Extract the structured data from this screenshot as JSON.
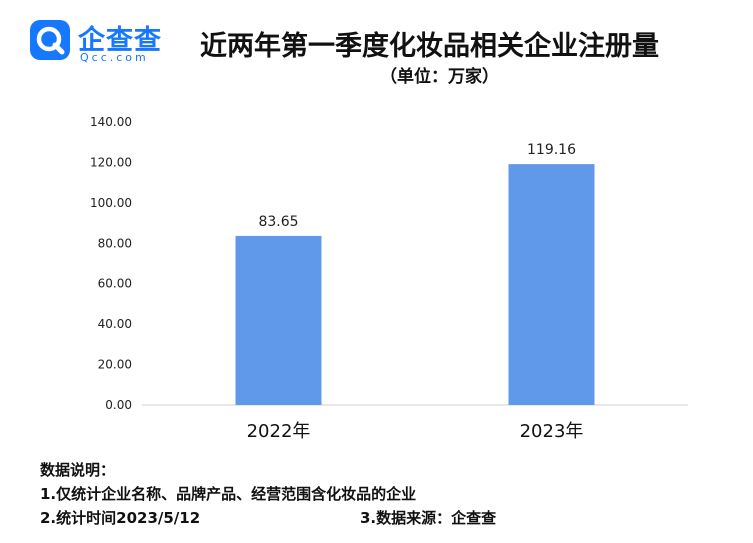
{
  "logo": {
    "name": "企查查",
    "domain": "Qcc.com",
    "icon": "qcc-logo-icon",
    "color": "#1677ff"
  },
  "title": "近两年第一季度化妆品相关企业注册量",
  "subtitle": "（单位：万家）",
  "chart_data": {
    "type": "bar",
    "categories": [
      "2022年",
      "2023年"
    ],
    "values": [
      83.65,
      119.16
    ],
    "value_labels": [
      "83.65",
      "119.16"
    ],
    "yticks": [
      "0.00",
      "20.00",
      "40.00",
      "60.00",
      "80.00",
      "100.00",
      "120.00",
      "140.00"
    ],
    "ylim": [
      0,
      140
    ],
    "bar_color": "#6199ea",
    "grid": false
  },
  "notes": {
    "heading": "数据说明：",
    "line1": "1.仅统计企业名称、品牌产品、经营范围含化妆品的企业",
    "line2": "2.统计时间2023/5/12",
    "source": "3.数据来源：企查查"
  }
}
